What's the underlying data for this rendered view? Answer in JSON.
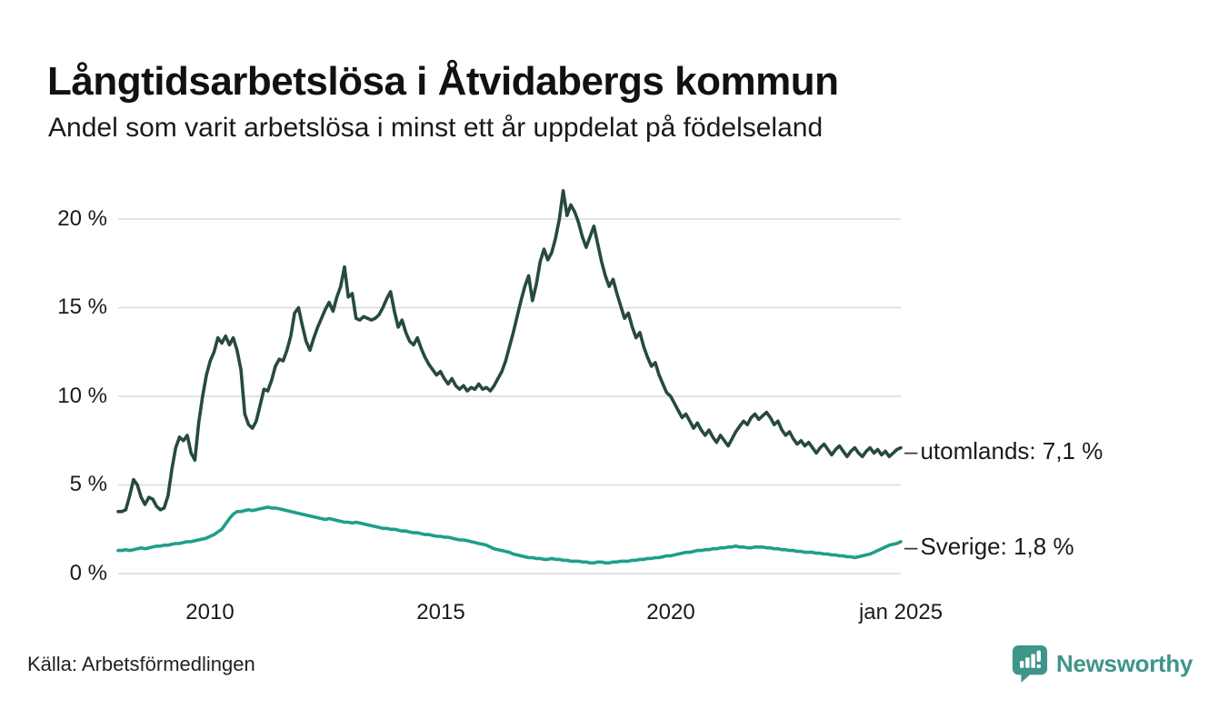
{
  "header": {
    "title": "Långtidsarbetslösa i Åtvidabergs kommun",
    "subtitle": "Andel som varit arbetslösa i minst ett år uppdelat på födelseland"
  },
  "footer": {
    "source": "Källa: Arbetsförmedlingen",
    "brand": "Newsworthy"
  },
  "colors": {
    "background": "#ffffff",
    "text": "#1a1a1a",
    "gridline": "#d9d9d9",
    "utomlands_line": "#274a3e",
    "sverige_line": "#1f9e8b",
    "brand_teal": "#3e9589"
  },
  "chart_data": {
    "type": "line",
    "title": "Långtidsarbetslösa i Åtvidabergs kommun",
    "subtitle": "Andel som varit arbetslösa i minst ett år uppdelat på födelseland",
    "xlabel": "",
    "ylabel": "",
    "x_unit": "month",
    "x_start": "2008-01",
    "x_end": "2025-01",
    "ylim": [
      0,
      22
    ],
    "grid": "horizontal",
    "legend_position": "right-end-labels",
    "label_dash": "–",
    "y_ticks": [
      {
        "label": "20 %",
        "value": 20
      },
      {
        "label": "15 %",
        "value": 15
      },
      {
        "label": "10 %",
        "value": 10
      },
      {
        "label": "5 %",
        "value": 5
      },
      {
        "label": "0 %",
        "value": 0
      }
    ],
    "x_ticks": [
      {
        "label": "2010",
        "month_index": 24
      },
      {
        "label": "2015",
        "month_index": 84
      },
      {
        "label": "2020",
        "month_index": 144
      },
      {
        "label": "jan 2025",
        "month_index": 204
      }
    ],
    "series": [
      {
        "name": "utomlands",
        "end_label": "utomlands: 7,1 %",
        "last_value_text": "7,1 %",
        "last_value": 7.1,
        "color": "#274a3e",
        "values": [
          3.5,
          3.5,
          3.6,
          4.4,
          5.3,
          5.0,
          4.3,
          3.9,
          4.3,
          4.2,
          3.8,
          3.6,
          3.7,
          4.4,
          5.9,
          7.1,
          7.7,
          7.5,
          7.8,
          6.8,
          6.4,
          8.5,
          10.0,
          11.2,
          12.0,
          12.5,
          13.3,
          13.0,
          13.4,
          12.9,
          13.3,
          12.6,
          11.5,
          9.0,
          8.4,
          8.2,
          8.6,
          9.5,
          10.4,
          10.3,
          10.9,
          11.7,
          12.1,
          12.0,
          12.6,
          13.4,
          14.7,
          15.0,
          14.0,
          13.1,
          12.6,
          13.3,
          13.9,
          14.4,
          14.9,
          15.3,
          14.8,
          15.6,
          16.2,
          17.3,
          15.6,
          15.8,
          14.4,
          14.3,
          14.5,
          14.4,
          14.3,
          14.4,
          14.6,
          15.0,
          15.5,
          15.9,
          14.8,
          13.9,
          14.3,
          13.6,
          13.1,
          12.9,
          13.3,
          12.7,
          12.2,
          11.8,
          11.5,
          11.2,
          11.4,
          11.0,
          10.7,
          11.0,
          10.6,
          10.4,
          10.6,
          10.3,
          10.5,
          10.4,
          10.7,
          10.4,
          10.5,
          10.3,
          10.6,
          11.0,
          11.4,
          12.0,
          12.8,
          13.6,
          14.5,
          15.4,
          16.2,
          16.8,
          15.4,
          16.3,
          17.6,
          18.3,
          17.7,
          18.1,
          18.9,
          20.0,
          21.6,
          20.2,
          20.8,
          20.4,
          19.8,
          19.0,
          18.4,
          19.0,
          19.6,
          18.6,
          17.6,
          16.8,
          16.2,
          16.6,
          15.8,
          15.1,
          14.4,
          14.7,
          13.9,
          13.3,
          13.6,
          12.8,
          12.2,
          11.7,
          11.9,
          11.2,
          10.7,
          10.2,
          10.0,
          9.6,
          9.2,
          8.8,
          9.0,
          8.6,
          8.2,
          8.5,
          8.1,
          7.8,
          8.1,
          7.7,
          7.4,
          7.8,
          7.5,
          7.2,
          7.6,
          8.0,
          8.3,
          8.6,
          8.4,
          8.8,
          9.0,
          8.7,
          8.9,
          9.1,
          8.8,
          8.4,
          8.6,
          8.1,
          7.8,
          8.0,
          7.6,
          7.3,
          7.5,
          7.2,
          7.4,
          7.1,
          6.8,
          7.1,
          7.3,
          7.0,
          6.7,
          7.0,
          7.2,
          6.9,
          6.6,
          6.9,
          7.1,
          6.8,
          6.6,
          6.9,
          7.1,
          6.8,
          7.0,
          6.7,
          6.9,
          6.6,
          6.8,
          7.0,
          7.1
        ]
      },
      {
        "name": "Sverige",
        "end_label": "Sverige: 1,8 %",
        "last_value_text": "1,8 %",
        "last_value": 1.8,
        "color": "#1f9e8b",
        "values": [
          1.3,
          1.3,
          1.35,
          1.3,
          1.35,
          1.4,
          1.45,
          1.4,
          1.45,
          1.5,
          1.55,
          1.55,
          1.6,
          1.6,
          1.65,
          1.7,
          1.7,
          1.75,
          1.8,
          1.8,
          1.85,
          1.9,
          1.95,
          2.0,
          2.1,
          2.2,
          2.35,
          2.5,
          2.8,
          3.1,
          3.35,
          3.5,
          3.5,
          3.55,
          3.6,
          3.55,
          3.6,
          3.65,
          3.7,
          3.75,
          3.7,
          3.7,
          3.65,
          3.6,
          3.55,
          3.5,
          3.45,
          3.4,
          3.35,
          3.3,
          3.25,
          3.2,
          3.15,
          3.1,
          3.05,
          3.1,
          3.05,
          3.0,
          2.95,
          2.9,
          2.9,
          2.85,
          2.9,
          2.85,
          2.8,
          2.75,
          2.7,
          2.65,
          2.6,
          2.55,
          2.55,
          2.5,
          2.5,
          2.45,
          2.4,
          2.4,
          2.35,
          2.3,
          2.3,
          2.25,
          2.2,
          2.2,
          2.15,
          2.1,
          2.1,
          2.05,
          2.05,
          2.0,
          1.95,
          1.9,
          1.9,
          1.85,
          1.8,
          1.75,
          1.7,
          1.65,
          1.6,
          1.5,
          1.4,
          1.35,
          1.3,
          1.25,
          1.2,
          1.1,
          1.05,
          1.0,
          0.95,
          0.9,
          0.9,
          0.85,
          0.85,
          0.8,
          0.8,
          0.85,
          0.8,
          0.8,
          0.75,
          0.75,
          0.7,
          0.7,
          0.7,
          0.65,
          0.65,
          0.6,
          0.6,
          0.65,
          0.65,
          0.6,
          0.6,
          0.65,
          0.65,
          0.7,
          0.7,
          0.7,
          0.75,
          0.75,
          0.8,
          0.8,
          0.85,
          0.85,
          0.9,
          0.9,
          0.95,
          1.0,
          1.0,
          1.05,
          1.1,
          1.15,
          1.2,
          1.2,
          1.25,
          1.3,
          1.3,
          1.35,
          1.35,
          1.4,
          1.4,
          1.45,
          1.45,
          1.5,
          1.5,
          1.55,
          1.5,
          1.5,
          1.45,
          1.45,
          1.5,
          1.5,
          1.5,
          1.45,
          1.45,
          1.4,
          1.4,
          1.35,
          1.35,
          1.3,
          1.3,
          1.25,
          1.25,
          1.2,
          1.2,
          1.2,
          1.15,
          1.15,
          1.1,
          1.1,
          1.05,
          1.05,
          1.0,
          1.0,
          0.95,
          0.95,
          0.9,
          0.95,
          1.0,
          1.05,
          1.1,
          1.2,
          1.3,
          1.4,
          1.5,
          1.6,
          1.65,
          1.7,
          1.8
        ]
      }
    ]
  }
}
